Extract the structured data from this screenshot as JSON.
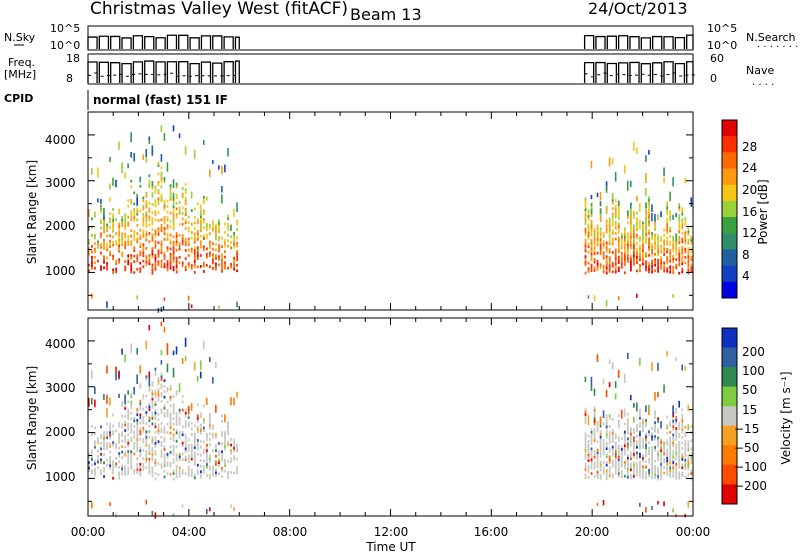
{
  "header": {
    "station": "Christmas Valley West (fitACF)",
    "beam": "Beam 13",
    "date": "24/Oct/2013"
  },
  "top_panels": {
    "nsky_label": "N.Sky",
    "nsky_ticks": [
      "10^5",
      "10^0"
    ],
    "nsearch_label": "N.Search",
    "nsearch_ticks": [
      "10^5",
      "10^0"
    ],
    "freq_label_1": "Freq.",
    "freq_label_2": "[MHz]",
    "freq_ticks": [
      "18",
      "8"
    ],
    "nave_label": "Nave",
    "nave_ticks": [
      "60",
      "0"
    ],
    "cpid_label": "CPID",
    "cpid_text": "normal (fast) 151 IF"
  },
  "axes": {
    "xlabel": "Time UT",
    "x_ticks": [
      "00:00",
      "04:00",
      "08:00",
      "12:00",
      "16:00",
      "20:00",
      "00:00"
    ],
    "ylabel": "Slant Range [km]",
    "y_ticks": [
      "1000",
      "2000",
      "3000",
      "4000"
    ]
  },
  "chart_data": [
    {
      "type": "heatmap",
      "title": "",
      "xlabel": "Time UT",
      "ylabel": "Slant Range [km]",
      "xlim": [
        0,
        24
      ],
      "ylim": [
        180,
        4500
      ],
      "colorbar_label": "Power [dB]",
      "colorbar_ticks": [
        "28",
        "24",
        "20",
        "16",
        "12",
        "8",
        "4"
      ],
      "colorbar_colors": [
        "#e00000",
        "#ff3000",
        "#ff6a00",
        "#ff9a10",
        "#f5c518",
        "#9ad03a",
        "#3aa040",
        "#2f8f6a",
        "#2060a0",
        "#1040c0",
        "#0000e0"
      ],
      "data_segments": [
        {
          "start": 0.0,
          "end": 6.0
        },
        {
          "start": 19.7,
          "end": 24.0
        }
      ]
    },
    {
      "type": "heatmap",
      "title": "",
      "xlabel": "Time UT",
      "ylabel": "Slant Range [km]",
      "xlim": [
        0,
        24
      ],
      "ylim": [
        180,
        4500
      ],
      "colorbar_label": "Velocity [m s⁻¹]",
      "colorbar_ticks": [
        "200",
        "100",
        "50",
        "15",
        "−15",
        "−50",
        "−100",
        "−200"
      ],
      "colorbar_colors": [
        "#1030c0",
        "#3060a0",
        "#2f8a50",
        "#80cc40",
        "#c8c8c0",
        "#f5a020",
        "#ff7a00",
        "#ff4a00",
        "#e00000"
      ],
      "data_segments": [
        {
          "start": 0.0,
          "end": 6.0
        },
        {
          "start": 19.7,
          "end": 24.0
        }
      ]
    }
  ]
}
